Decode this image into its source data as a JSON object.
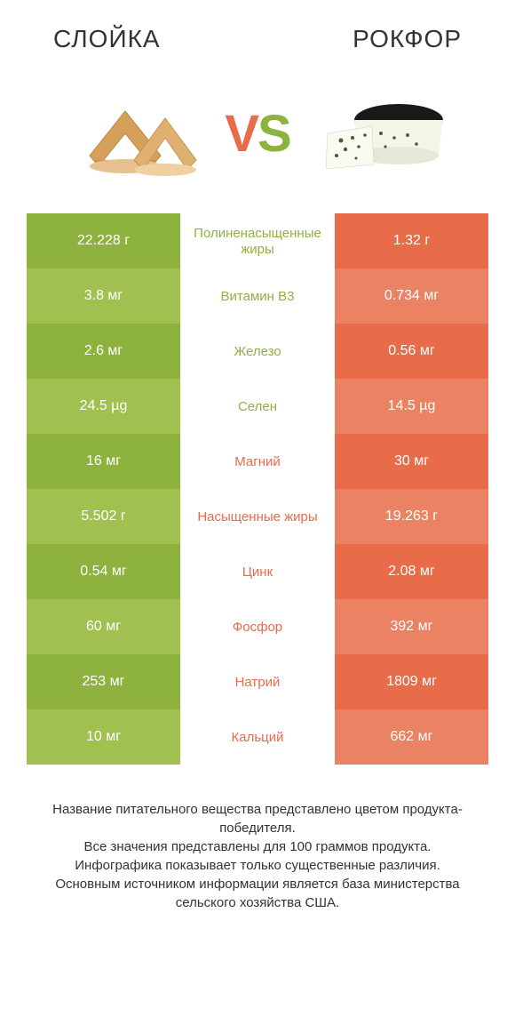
{
  "header": {
    "left_title": "СЛОЙКА",
    "right_title": "РОКФОР"
  },
  "vs": {
    "v": "V",
    "s": "S"
  },
  "colors": {
    "green": "#8eb23e",
    "green_alt": "#a0c04f",
    "orange": "#e86b4a",
    "orange_alt": "#ec8264",
    "text": "#333333",
    "white": "#ffffff"
  },
  "table": {
    "rows": [
      {
        "left": "22.228 г",
        "mid": "Полиненасыщенные жиры",
        "right": "1.32 г",
        "winner": "left"
      },
      {
        "left": "3.8 мг",
        "mid": "Витамин B3",
        "right": "0.734 мг",
        "winner": "left"
      },
      {
        "left": "2.6 мг",
        "mid": "Железо",
        "right": "0.56 мг",
        "winner": "left"
      },
      {
        "left": "24.5 µg",
        "mid": "Селен",
        "right": "14.5 µg",
        "winner": "left"
      },
      {
        "left": "16 мг",
        "mid": "Магний",
        "right": "30 мг",
        "winner": "right"
      },
      {
        "left": "5.502 г",
        "mid": "Насыщенные жиры",
        "right": "19.263 г",
        "winner": "right"
      },
      {
        "left": "0.54 мг",
        "mid": "Цинк",
        "right": "2.08 мг",
        "winner": "right"
      },
      {
        "left": "60 мг",
        "mid": "Фосфор",
        "right": "392 мг",
        "winner": "right"
      },
      {
        "left": "253 мг",
        "mid": "Натрий",
        "right": "1809 мг",
        "winner": "right"
      },
      {
        "left": "10 мг",
        "mid": "Кальций",
        "right": "662 мг",
        "winner": "right"
      }
    ]
  },
  "footer": {
    "line1": "Название питательного вещества представлено цветом продукта-победителя.",
    "line2": "Все значения представлены для 100 граммов продукта.",
    "line3": "Инфографика показывает только существенные различия.",
    "line4": "Основным источником информации является база министерства сельского хозяйства США."
  }
}
